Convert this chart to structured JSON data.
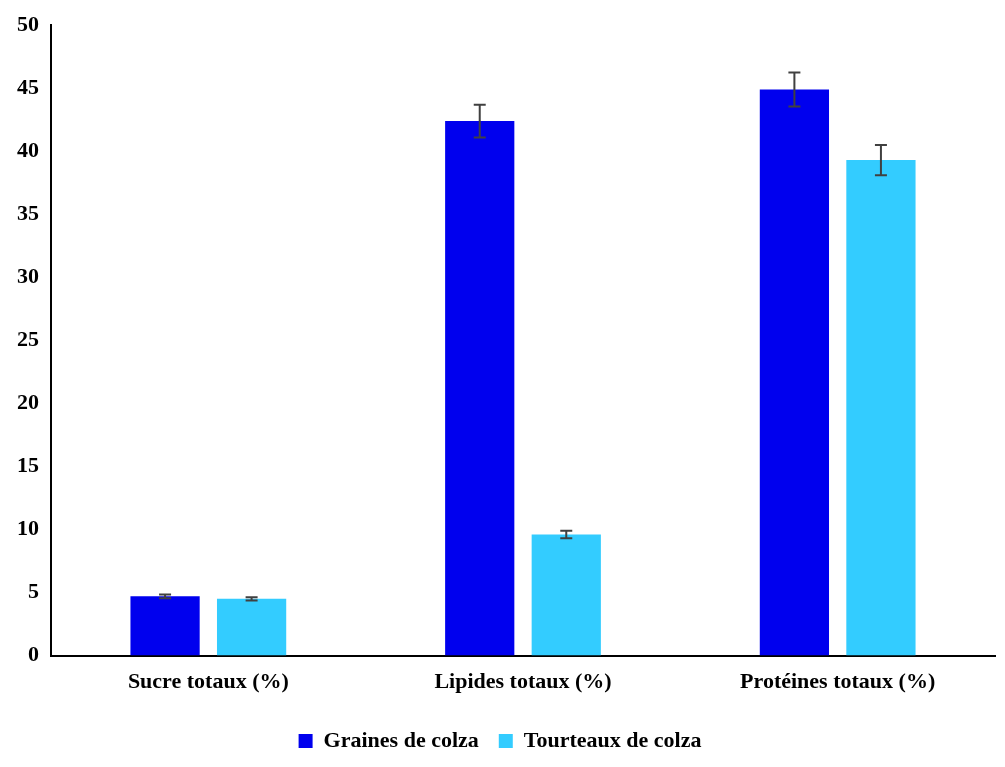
{
  "chart_data": {
    "type": "bar",
    "categories": [
      "Sucre totaux (%)",
      "Lipides totaux (%)",
      "Protéines totaux (%)"
    ],
    "series": [
      {
        "name": "Graines de colza",
        "color": "#0000ee",
        "values": [
          4.7,
          42.4,
          44.9
        ],
        "errors": [
          0.15,
          1.3,
          1.35
        ]
      },
      {
        "name": "Tourteaux de colza",
        "color": "#33ccff",
        "values": [
          4.5,
          9.6,
          39.3
        ],
        "errors": [
          0.12,
          0.3,
          1.2
        ]
      }
    ],
    "ylim": [
      0,
      50
    ],
    "yticks": [
      0,
      5,
      10,
      15,
      20,
      25,
      30,
      35,
      40,
      45,
      50
    ],
    "grid": false,
    "legend": "bottom"
  }
}
